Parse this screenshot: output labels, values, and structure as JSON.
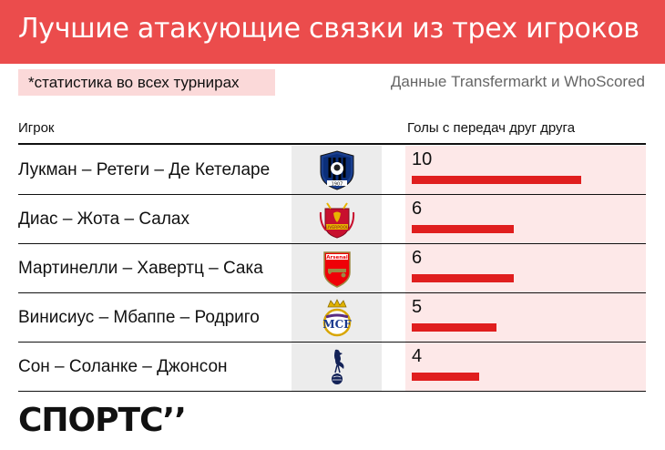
{
  "title": "Лучшие атакующие связки из трех игроков",
  "note": "*статистика во всех турнирах",
  "source": "Данные Transfermarkt и WhoScored",
  "headers": {
    "player": "Игрок",
    "goals": "Голы с передач друг друга"
  },
  "brand": "СПОРТС’’",
  "colors": {
    "accent": "#eb4c4c",
    "bar": "#e01e1e",
    "row_bg": "#fde8e8",
    "logo_bg": "#ececec"
  },
  "chart_data": {
    "type": "bar",
    "orientation": "horizontal",
    "title": "Лучшие атакующие связки из трех игроков",
    "categories": [
      "Лукман – Ретеги – Де Кетеларе",
      "Диас – Жота – Салах",
      "Мартинелли – Хавертц – Сака",
      "Винисиус – Мбаппе – Родриго",
      "Сон – Соланке – Джонсон"
    ],
    "values": [
      10,
      6,
      6,
      5,
      4
    ],
    "xlim": [
      0,
      10
    ],
    "grid": false,
    "value_label": "Голы с передач друг друга"
  },
  "rows": [
    {
      "player": "Лукман – Ретеги – Де Кетеларе",
      "club_icon": "atalanta-crest-icon",
      "value": "10"
    },
    {
      "player": "Диас – Жота – Салах",
      "club_icon": "liverpool-crest-icon",
      "value": "6"
    },
    {
      "player": "Мартинелли – Хавертц – Сака",
      "club_icon": "arsenal-crest-icon",
      "value": "6"
    },
    {
      "player": "Винисиус – Мбаппе – Родриго",
      "club_icon": "real-madrid-crest-icon",
      "value": "5"
    },
    {
      "player": "Сон – Соланке – Джонсон",
      "club_icon": "tottenham-crest-icon",
      "value": "4"
    }
  ]
}
